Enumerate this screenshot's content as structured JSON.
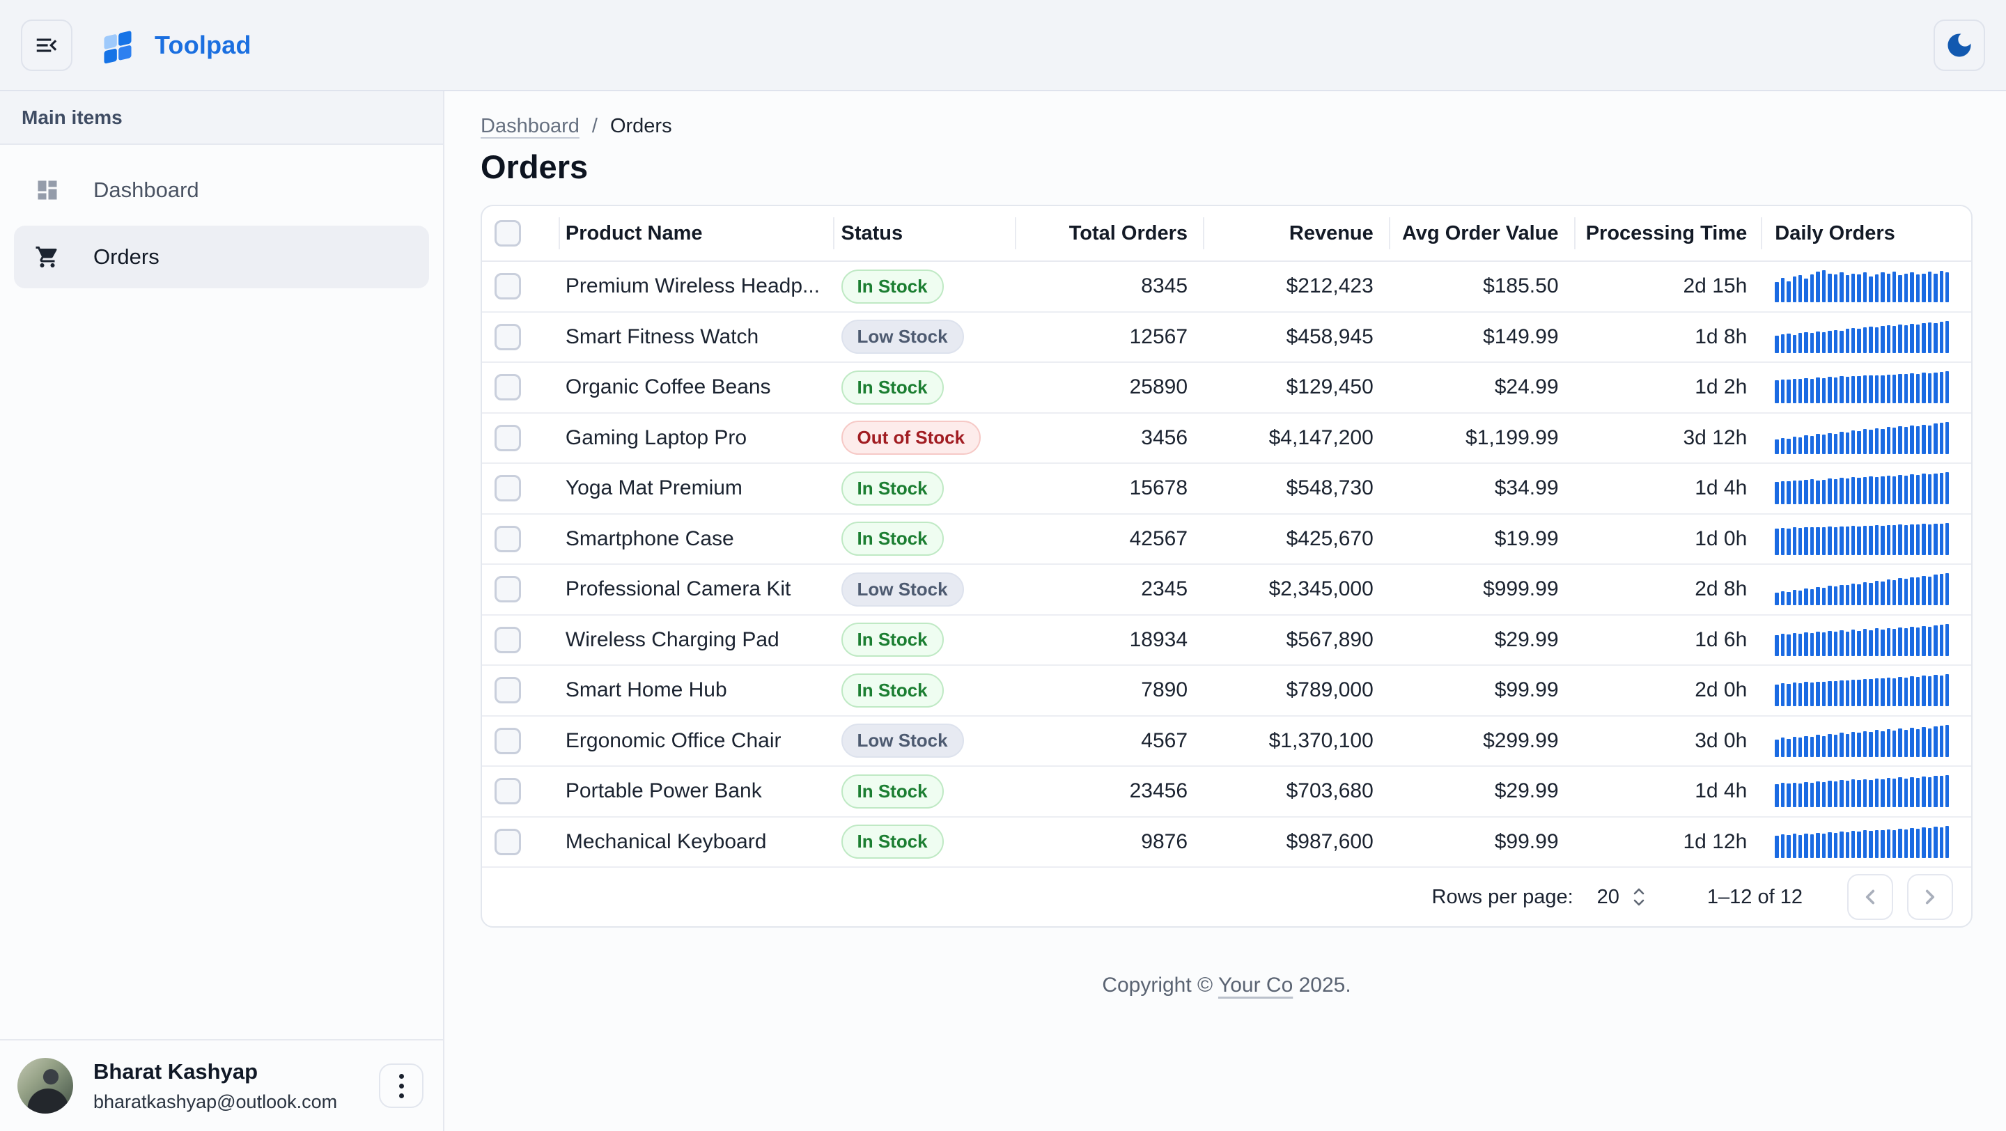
{
  "appbar": {
    "app_title": "Toolpad"
  },
  "sidebar": {
    "section_label": "Main items",
    "items": [
      {
        "label": "Dashboard",
        "icon": "dashboard-icon",
        "active": false
      },
      {
        "label": "Orders",
        "icon": "cart-icon",
        "active": true
      }
    ]
  },
  "user": {
    "name": "Bharat Kashyap",
    "email": "bharatkashyap@outlook.com"
  },
  "breadcrumb": {
    "parent": "Dashboard",
    "separator": "/",
    "current": "Orders"
  },
  "page": {
    "title": "Orders"
  },
  "table": {
    "columns": [
      "Product Name",
      "Status",
      "Total Orders",
      "Revenue",
      "Avg Order Value",
      "Processing Time",
      "Daily Orders"
    ],
    "rows": [
      {
        "name": "Premium Wireless Headp...",
        "status": "In Stock",
        "status_type": "in",
        "total_orders": "8345",
        "revenue": "$212,423",
        "avg_order_value": "$185.50",
        "processing_time": "2d 15h",
        "spark": [
          0.62,
          0.75,
          0.66,
          0.8,
          0.85,
          0.74,
          0.88,
          0.95,
          1,
          0.9,
          0.86,
          0.93,
          0.84,
          0.9,
          0.87,
          0.93,
          0.8,
          0.86,
          0.94,
          0.9,
          0.96,
          0.84,
          0.9,
          0.94,
          0.88,
          0.9,
          0.95,
          0.9,
          0.98,
          0.94
        ]
      },
      {
        "name": "Smart Fitness Watch",
        "status": "Low Stock",
        "status_type": "low",
        "total_orders": "12567",
        "revenue": "$458,945",
        "avg_order_value": "$149.99",
        "processing_time": "1d 8h",
        "spark": [
          0.55,
          0.58,
          0.6,
          0.57,
          0.62,
          0.65,
          0.63,
          0.68,
          0.66,
          0.7,
          0.72,
          0.7,
          0.75,
          0.78,
          0.76,
          0.8,
          0.82,
          0.8,
          0.85,
          0.87,
          0.85,
          0.9,
          0.88,
          0.92,
          0.9,
          0.94,
          0.96,
          0.93,
          0.98,
          1
        ]
      },
      {
        "name": "Organic Coffee Beans",
        "status": "In Stock",
        "status_type": "in",
        "total_orders": "25890",
        "revenue": "$129,450",
        "avg_order_value": "$24.99",
        "processing_time": "1d 2h",
        "spark": [
          0.72,
          0.74,
          0.73,
          0.76,
          0.75,
          0.78,
          0.77,
          0.8,
          0.79,
          0.82,
          0.8,
          0.84,
          0.83,
          0.85,
          0.84,
          0.87,
          0.86,
          0.88,
          0.87,
          0.9,
          0.89,
          0.92,
          0.91,
          0.93,
          0.92,
          0.95,
          0.94,
          0.96,
          0.97,
          1
        ]
      },
      {
        "name": "Gaming Laptop Pro",
        "status": "Out of Stock",
        "status_type": "out",
        "total_orders": "3456",
        "revenue": "$4,147,200",
        "avg_order_value": "$1,199.99",
        "processing_time": "3d 12h",
        "spark": [
          0.45,
          0.5,
          0.48,
          0.55,
          0.53,
          0.58,
          0.56,
          0.62,
          0.6,
          0.66,
          0.64,
          0.7,
          0.68,
          0.74,
          0.72,
          0.78,
          0.76,
          0.8,
          0.79,
          0.84,
          0.82,
          0.86,
          0.85,
          0.9,
          0.88,
          0.92,
          0.9,
          0.95,
          0.97,
          1
        ]
      },
      {
        "name": "Yoga Mat Premium",
        "status": "In Stock",
        "status_type": "in",
        "total_orders": "15678",
        "revenue": "$548,730",
        "avg_order_value": "$34.99",
        "processing_time": "1d 4h",
        "spark": [
          0.7,
          0.72,
          0.71,
          0.74,
          0.73,
          0.76,
          0.78,
          0.74,
          0.77,
          0.8,
          0.78,
          0.82,
          0.8,
          0.84,
          0.82,
          0.85,
          0.88,
          0.84,
          0.87,
          0.9,
          0.88,
          0.92,
          0.9,
          0.93,
          0.91,
          0.95,
          0.93,
          0.96,
          0.98,
          1
        ]
      },
      {
        "name": "Smartphone Case",
        "status": "In Stock",
        "status_type": "in",
        "total_orders": "42567",
        "revenue": "$425,670",
        "avg_order_value": "$19.99",
        "processing_time": "1d 0h",
        "spark": [
          0.82,
          0.84,
          0.83,
          0.86,
          0.85,
          0.87,
          0.86,
          0.88,
          0.87,
          0.89,
          0.88,
          0.9,
          0.89,
          0.91,
          0.9,
          0.92,
          0.91,
          0.93,
          0.92,
          0.94,
          0.93,
          0.95,
          0.94,
          0.96,
          0.95,
          0.97,
          0.96,
          0.98,
          0.97,
          1
        ]
      },
      {
        "name": "Professional Camera Kit",
        "status": "Low Stock",
        "status_type": "low",
        "total_orders": "2345",
        "revenue": "$2,345,000",
        "avg_order_value": "$999.99",
        "processing_time": "2d 8h",
        "spark": [
          0.4,
          0.44,
          0.42,
          0.48,
          0.46,
          0.52,
          0.5,
          0.56,
          0.54,
          0.6,
          0.58,
          0.64,
          0.62,
          0.68,
          0.66,
          0.72,
          0.7,
          0.76,
          0.74,
          0.8,
          0.78,
          0.84,
          0.82,
          0.88,
          0.86,
          0.92,
          0.9,
          0.96,
          0.98,
          1
        ]
      },
      {
        "name": "Wireless Charging Pad",
        "status": "In Stock",
        "status_type": "in",
        "total_orders": "18934",
        "revenue": "$567,890",
        "avg_order_value": "$29.99",
        "processing_time": "1d 6h",
        "spark": [
          0.65,
          0.7,
          0.67,
          0.72,
          0.69,
          0.74,
          0.71,
          0.76,
          0.73,
          0.78,
          0.75,
          0.8,
          0.77,
          0.82,
          0.79,
          0.84,
          0.81,
          0.86,
          0.83,
          0.88,
          0.85,
          0.9,
          0.87,
          0.92,
          0.89,
          0.94,
          0.91,
          0.96,
          0.98,
          1
        ]
      },
      {
        "name": "Smart Home Hub",
        "status": "In Stock",
        "status_type": "in",
        "total_orders": "7890",
        "revenue": "$789,000",
        "avg_order_value": "$99.99",
        "processing_time": "2d 0h",
        "spark": [
          0.68,
          0.71,
          0.7,
          0.73,
          0.72,
          0.75,
          0.74,
          0.77,
          0.76,
          0.79,
          0.78,
          0.81,
          0.8,
          0.83,
          0.82,
          0.85,
          0.84,
          0.87,
          0.86,
          0.89,
          0.88,
          0.91,
          0.9,
          0.93,
          0.92,
          0.95,
          0.94,
          0.97,
          0.96,
          1
        ]
      },
      {
        "name": "Ergonomic Office Chair",
        "status": "Low Stock",
        "status_type": "low",
        "total_orders": "4567",
        "revenue": "$1,370,100",
        "avg_order_value": "$299.99",
        "processing_time": "3d 0h",
        "spark": [
          0.55,
          0.6,
          0.57,
          0.63,
          0.6,
          0.66,
          0.63,
          0.69,
          0.66,
          0.72,
          0.69,
          0.75,
          0.72,
          0.78,
          0.75,
          0.81,
          0.78,
          0.84,
          0.8,
          0.86,
          0.83,
          0.89,
          0.85,
          0.91,
          0.88,
          0.94,
          0.9,
          0.96,
          0.98,
          1
        ]
      },
      {
        "name": "Portable Power Bank",
        "status": "In Stock",
        "status_type": "in",
        "total_orders": "23456",
        "revenue": "$703,680",
        "avg_order_value": "$29.99",
        "processing_time": "1d 4h",
        "spark": [
          0.72,
          0.75,
          0.73,
          0.77,
          0.74,
          0.78,
          0.76,
          0.8,
          0.78,
          0.82,
          0.8,
          0.84,
          0.82,
          0.86,
          0.84,
          0.88,
          0.85,
          0.89,
          0.87,
          0.91,
          0.89,
          0.93,
          0.9,
          0.94,
          0.92,
          0.96,
          0.94,
          0.97,
          0.98,
          1
        ]
      },
      {
        "name": "Mechanical Keyboard",
        "status": "In Stock",
        "status_type": "in",
        "total_orders": "9876",
        "revenue": "$987,600",
        "avg_order_value": "$99.99",
        "processing_time": "1d 12h",
        "spark": [
          0.7,
          0.73,
          0.71,
          0.75,
          0.72,
          0.76,
          0.74,
          0.78,
          0.76,
          0.8,
          0.78,
          0.82,
          0.8,
          0.84,
          0.82,
          0.86,
          0.84,
          0.88,
          0.86,
          0.9,
          0.88,
          0.92,
          0.9,
          0.94,
          0.92,
          0.96,
          0.94,
          0.98,
          0.96,
          1
        ]
      }
    ]
  },
  "pagination": {
    "rows_per_page_label": "Rows per page:",
    "rows_per_page": "20",
    "range": "1–12 of 12"
  },
  "footer": {
    "prefix": "Copyright © ",
    "link_text": "Your Co",
    "suffix": " 2025."
  },
  "colors": {
    "accent_blue": "#1b6fe0",
    "spark_bar": "#1a6ae2",
    "chip_in_text": "#1b7e31",
    "chip_low_text": "#4d5a70",
    "chip_out_text": "#a11d22"
  }
}
